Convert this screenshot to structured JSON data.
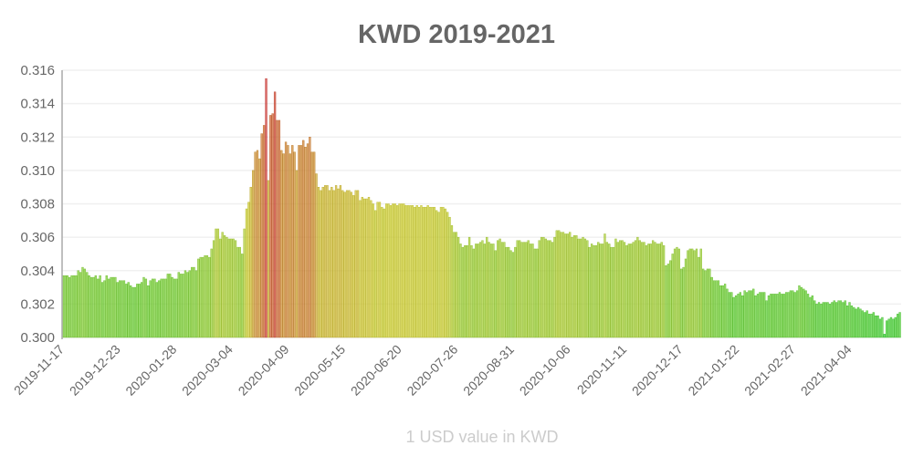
{
  "chart_data": {
    "type": "bar",
    "title": "KWD 2019-2021",
    "xlabel": "1 USD value in KWD",
    "ylabel": "",
    "ylim": [
      0.3,
      0.316
    ],
    "yticks": [
      "0.300",
      "0.302",
      "0.304",
      "0.306",
      "0.308",
      "0.310",
      "0.312",
      "0.314",
      "0.316"
    ],
    "xticks": [
      "2019-11-17",
      "2019-12-23",
      "2020-01-28",
      "2020-03-04",
      "2020-04-09",
      "2020-05-15",
      "2020-06-20",
      "2020-07-26",
      "2020-08-31",
      "2020-10-06",
      "2020-11-11",
      "2020-12-17",
      "2021-01-22",
      "2021-02-27",
      "2021-04-04"
    ],
    "x_range": [
      "2019-11-17",
      "2021-05-07"
    ],
    "grid": true,
    "legend": "none",
    "colors": {
      "low": "#44cc33",
      "mid": "#cccc44",
      "high": "#d43020"
    },
    "values": [
      0.3037,
      0.3037,
      0.3037,
      0.3036,
      0.3037,
      0.3037,
      0.3037,
      0.304,
      0.3039,
      0.3042,
      0.3041,
      0.3039,
      0.3037,
      0.3036,
      0.3036,
      0.3037,
      0.3035,
      0.3037,
      0.3033,
      0.3034,
      0.3037,
      0.3035,
      0.3036,
      0.3036,
      0.3036,
      0.3033,
      0.3034,
      0.3034,
      0.3034,
      0.3032,
      0.3033,
      0.3031,
      0.303,
      0.303,
      0.3032,
      0.3032,
      0.3033,
      0.3036,
      0.3035,
      0.3031,
      0.3034,
      0.3035,
      0.3035,
      0.3033,
      0.3034,
      0.3035,
      0.3035,
      0.3035,
      0.3038,
      0.3038,
      0.3036,
      0.3035,
      0.3035,
      0.3039,
      0.3038,
      0.3038,
      0.304,
      0.3039,
      0.304,
      0.3042,
      0.3042,
      0.304,
      0.3047,
      0.3048,
      0.3048,
      0.3049,
      0.3049,
      0.3048,
      0.3053,
      0.3058,
      0.3065,
      0.3065,
      0.3059,
      0.3063,
      0.3061,
      0.306,
      0.3059,
      0.3059,
      0.3059,
      0.3058,
      0.3054,
      0.3054,
      0.305,
      0.3065,
      0.3077,
      0.3081,
      0.309,
      0.31,
      0.3111,
      0.3112,
      0.3107,
      0.3122,
      0.3127,
      0.3155,
      0.3094,
      0.3133,
      0.3134,
      0.3147,
      0.313,
      0.313,
      0.3112,
      0.311,
      0.3117,
      0.3115,
      0.311,
      0.3115,
      0.3111,
      0.31,
      0.3115,
      0.3115,
      0.3118,
      0.3114,
      0.3116,
      0.312,
      0.3111,
      0.3111,
      0.3098,
      0.309,
      0.3088,
      0.309,
      0.3091,
      0.3091,
      0.3088,
      0.309,
      0.3088,
      0.3091,
      0.3089,
      0.3091,
      0.3088,
      0.3087,
      0.3088,
      0.3088,
      0.3087,
      0.3085,
      0.3088,
      0.3088,
      0.3082,
      0.3084,
      0.3083,
      0.3083,
      0.3084,
      0.3082,
      0.308,
      0.3076,
      0.3081,
      0.3081,
      0.3078,
      0.3077,
      0.308,
      0.308,
      0.3079,
      0.308,
      0.308,
      0.3079,
      0.308,
      0.308,
      0.308,
      0.3079,
      0.3079,
      0.3079,
      0.3079,
      0.3078,
      0.3079,
      0.3078,
      0.3079,
      0.3078,
      0.3078,
      0.3079,
      0.3078,
      0.3078,
      0.3078,
      0.3076,
      0.3075,
      0.3078,
      0.3078,
      0.3077,
      0.3075,
      0.3072,
      0.3067,
      0.3063,
      0.3063,
      0.306,
      0.3056,
      0.3054,
      0.3055,
      0.3055,
      0.306,
      0.3055,
      0.3053,
      0.3056,
      0.3056,
      0.3057,
      0.3058,
      0.3056,
      0.306,
      0.3057,
      0.3056,
      0.3056,
      0.3052,
      0.3058,
      0.3059,
      0.3057,
      0.3057,
      0.3054,
      0.3054,
      0.3052,
      0.3051,
      0.3054,
      0.3058,
      0.3058,
      0.3057,
      0.3057,
      0.3057,
      0.3058,
      0.3056,
      0.3056,
      0.3053,
      0.3053,
      0.3058,
      0.306,
      0.306,
      0.3059,
      0.3058,
      0.3058,
      0.3057,
      0.306,
      0.3064,
      0.3064,
      0.3063,
      0.3063,
      0.3062,
      0.3062,
      0.3063,
      0.306,
      0.3061,
      0.3061,
      0.3059,
      0.3059,
      0.306,
      0.3059,
      0.3058,
      0.3054,
      0.3056,
      0.3055,
      0.3055,
      0.3057,
      0.3056,
      0.3056,
      0.3062,
      0.3057,
      0.3056,
      0.3054,
      0.3054,
      0.3059,
      0.3057,
      0.3058,
      0.3058,
      0.3057,
      0.3055,
      0.3056,
      0.3056,
      0.3057,
      0.3058,
      0.306,
      0.3058,
      0.3057,
      0.3057,
      0.3055,
      0.3056,
      0.3056,
      0.3058,
      0.3057,
      0.3056,
      0.3056,
      0.3057,
      0.3055,
      0.3043,
      0.3044,
      0.3046,
      0.305,
      0.3053,
      0.3054,
      0.3053,
      0.3041,
      0.3042,
      0.3047,
      0.3052,
      0.3053,
      0.3053,
      0.3052,
      0.3053,
      0.3048,
      0.3053,
      0.3041,
      0.304,
      0.3041,
      0.3041,
      0.3036,
      0.3034,
      0.3034,
      0.3034,
      0.3031,
      0.3031,
      0.3032,
      0.3029,
      0.3027,
      0.3027,
      0.3024,
      0.3025,
      0.3026,
      0.3027,
      0.3025,
      0.3028,
      0.3027,
      0.3028,
      0.3028,
      0.3029,
      0.3025,
      0.3026,
      0.3027,
      0.3027,
      0.3027,
      0.3022,
      0.3025,
      0.3026,
      0.3026,
      0.3026,
      0.3026,
      0.3027,
      0.3026,
      0.3026,
      0.3027,
      0.3027,
      0.3028,
      0.3028,
      0.3027,
      0.3028,
      0.3031,
      0.303,
      0.3029,
      0.3028,
      0.3026,
      0.3024,
      0.3025,
      0.3022,
      0.302,
      0.3021,
      0.302,
      0.3021,
      0.3021,
      0.3021,
      0.302,
      0.3021,
      0.3022,
      0.3021,
      0.3022,
      0.3022,
      0.3021,
      0.3022,
      0.3019,
      0.3021,
      0.3019,
      0.3018,
      0.3017,
      0.3018,
      0.3017,
      0.3016,
      0.3015,
      0.3016,
      0.3014,
      0.3014,
      0.3015,
      0.3013,
      0.3013,
      0.3011,
      0.3012,
      0.3002,
      0.301,
      0.3011,
      0.3012,
      0.3011,
      0.3012,
      0.3014,
      0.3015
    ]
  }
}
